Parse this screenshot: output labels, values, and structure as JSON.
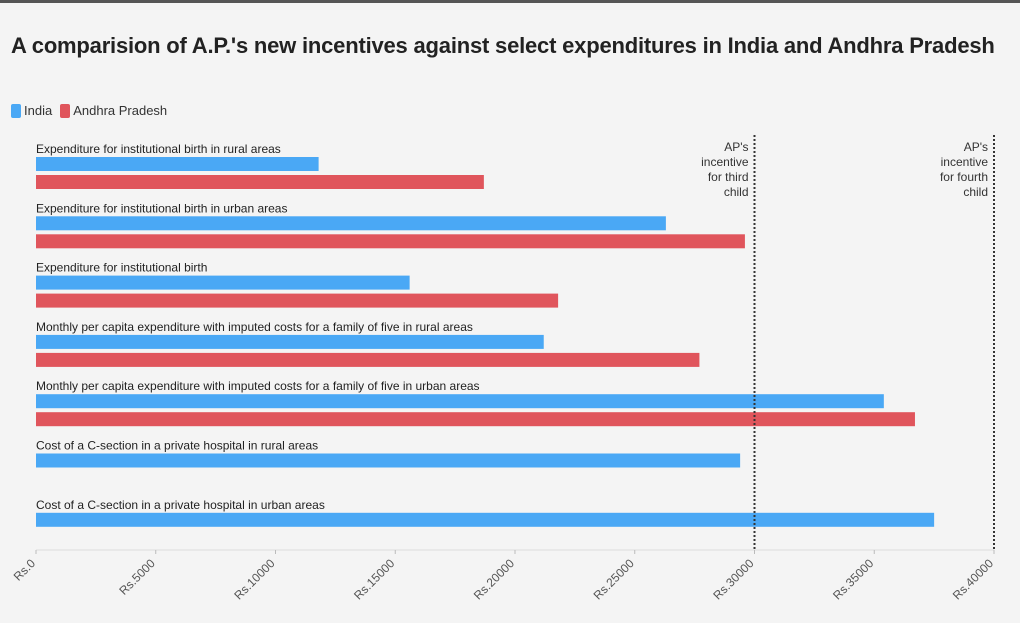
{
  "chart_data": {
    "type": "bar",
    "orientation": "horizontal",
    "title": "A comparision of A.P.'s new incentives against select expenditures in India and Andhra Pradesh",
    "legend_position": "top-left",
    "xlim": [
      0,
      40000
    ],
    "x_ticks": [
      0,
      5000,
      10000,
      15000,
      20000,
      25000,
      30000,
      35000,
      40000
    ],
    "x_tick_labels": [
      "Rs.0",
      "Rs.5000",
      "Rs.10000",
      "Rs.15000",
      "Rs.20000",
      "Rs.25000",
      "Rs.30000",
      "Rs.35000",
      "Rs.40000"
    ],
    "grid": false,
    "categories": [
      "Expenditure for institutional birth in rural areas",
      "Expenditure for institutional birth in urban areas",
      "Expenditure for institutional birth",
      "Monthly per capita expenditure with imputed costs for a family of five in rural areas",
      "Monthly per capita expenditure with imputed costs for a family of five in urban areas",
      "Cost of a C-section in a private hospital in rural areas",
      "Cost of a C-section in a private hospital in urban areas"
    ],
    "series": [
      {
        "name": "India",
        "color": "#4aa8f5",
        "values": [
          11800,
          26300,
          15600,
          21200,
          35400,
          29400,
          37500
        ]
      },
      {
        "name": "Andhra Pradesh",
        "color": "#e0555c",
        "values": [
          18700,
          29600,
          21800,
          27700,
          36700,
          null,
          null
        ]
      }
    ],
    "reference_lines": [
      {
        "value": 30000,
        "label_lines": [
          "AP's",
          "incentive",
          "for third",
          "child"
        ]
      },
      {
        "value": 40000,
        "label_lines": [
          "AP's",
          "incentive",
          "for fourth",
          "child"
        ]
      }
    ]
  }
}
